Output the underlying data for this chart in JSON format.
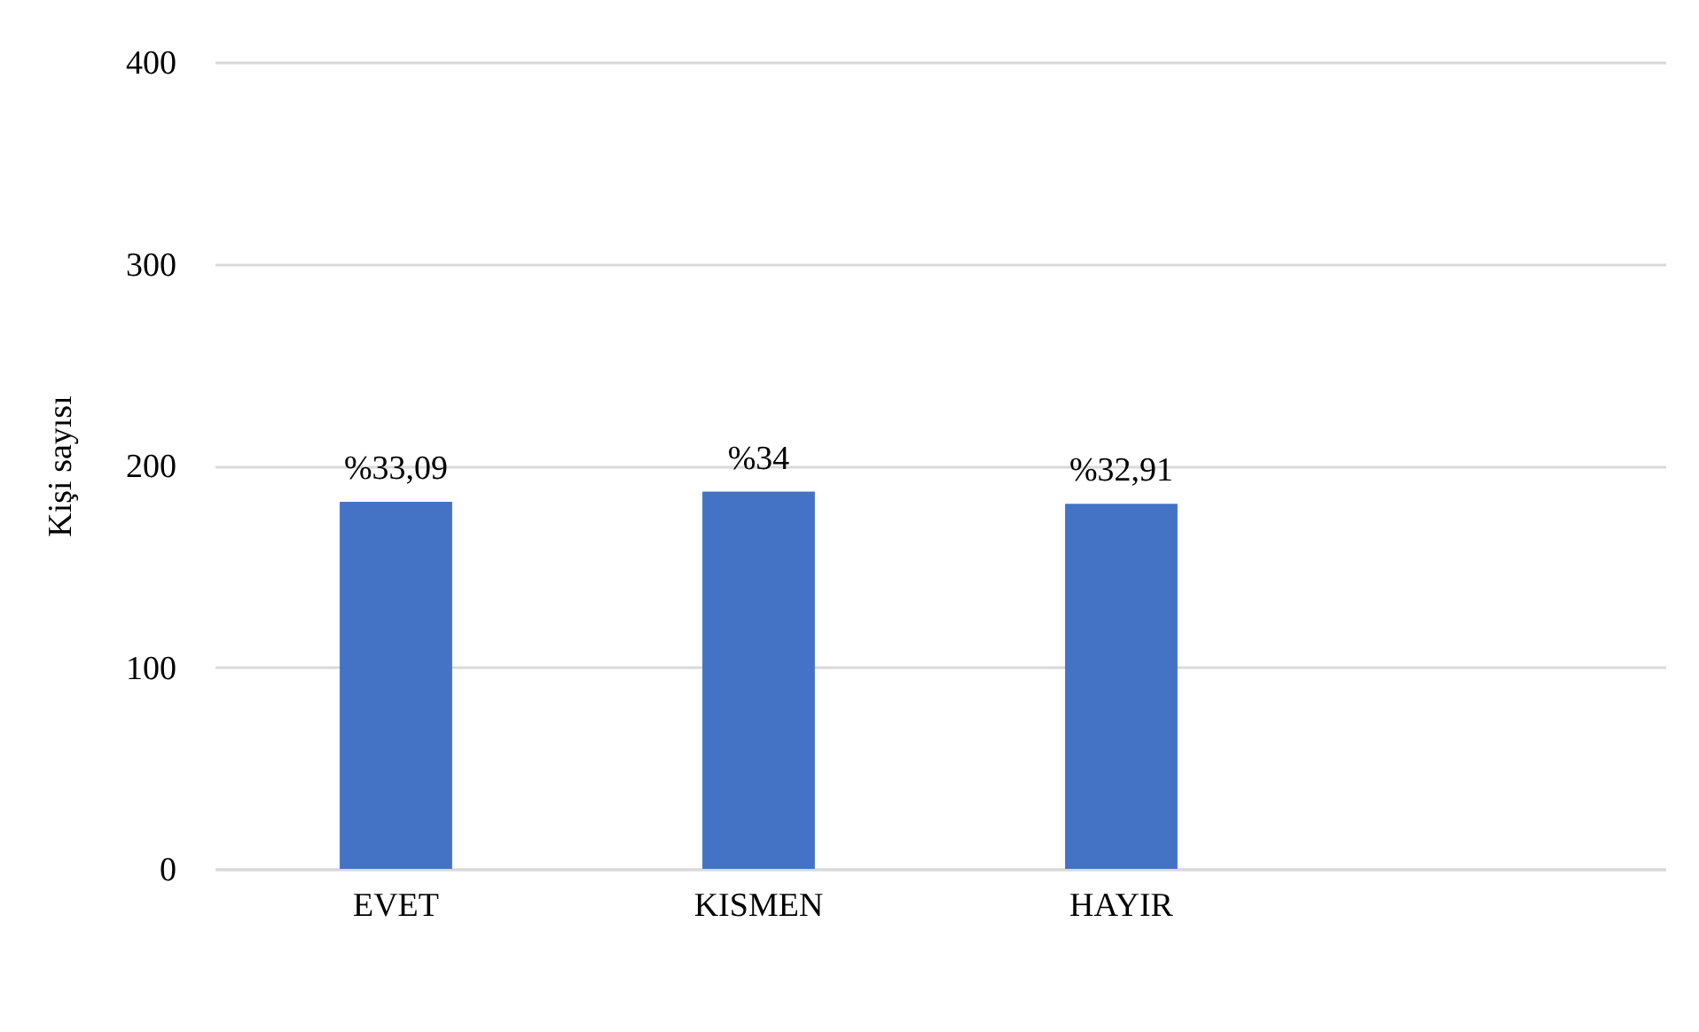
{
  "chart_data": {
    "type": "bar",
    "categories": [
      "EVET",
      "KISMEN",
      "HAYIR",
      null
    ],
    "values": [
      182,
      187,
      181,
      null
    ],
    "color": "#4472c4",
    "annotations": [
      {
        "text": "%33,09",
        "x": "EVET",
        "y": 182
      },
      {
        "text": "%34",
        "x": "KISMEN",
        "y": 187
      },
      {
        "text": "%32,91",
        "x": "HAYIR",
        "y": 181
      }
    ],
    "ylabel": "Kişi sayısı",
    "ylim": [
      0,
      400
    ],
    "yticks": [
      0,
      100,
      200,
      300,
      400
    ],
    "grid": "y"
  }
}
